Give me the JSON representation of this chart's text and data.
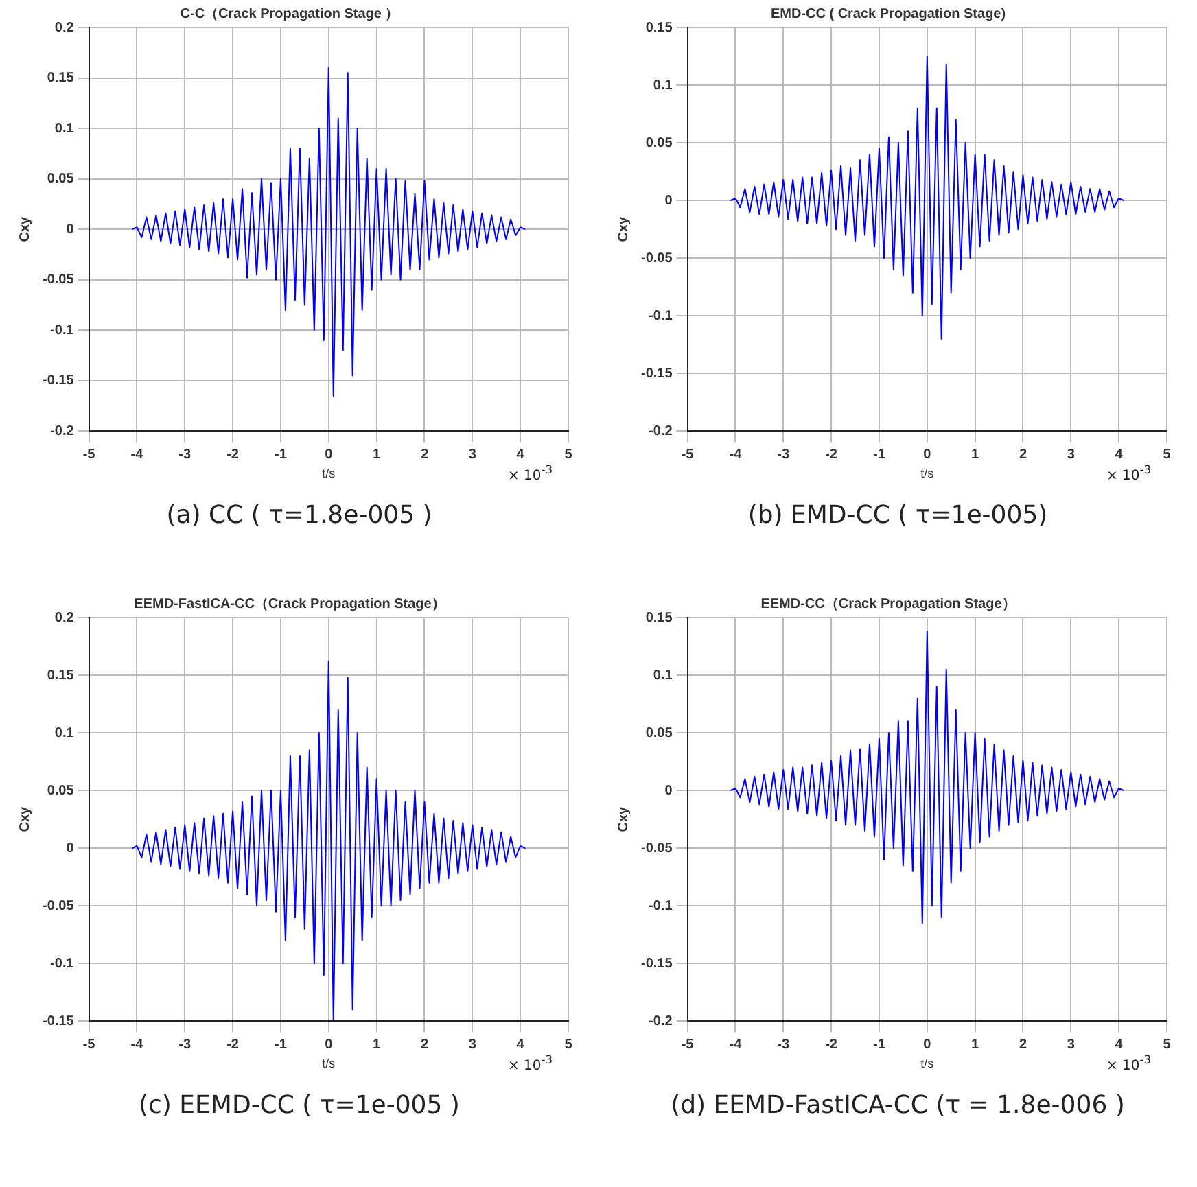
{
  "chart_data": [
    {
      "type": "line",
      "title": "C-C（Crack Propagation Stage ）",
      "xlabel": "t/s",
      "ylabel": "Cxy",
      "grid": true,
      "legend": false,
      "xlim": [
        -5,
        5
      ],
      "xticks": [
        -5,
        -4,
        -3,
        -2,
        -1,
        0,
        1,
        2,
        3,
        4,
        5
      ],
      "ylim": [
        -0.2,
        0.2
      ],
      "yticks": [
        -0.2,
        -0.15,
        -0.1,
        -0.05,
        0,
        0.05,
        0.1,
        0.15,
        0.2
      ],
      "annotations": [
        "× 10$^{-3}$",
        "(a) CC ( τ=1.8e-005 )"
      ],
      "x": [
        -4.1,
        -4.0,
        -3.9,
        -3.8,
        -3.7,
        -3.6,
        -3.5,
        -3.4,
        -3.3,
        -3.2,
        -3.1,
        -3.0,
        -2.9,
        -2.8,
        -2.7,
        -2.6,
        -2.5,
        -2.4,
        -2.3,
        -2.2,
        -2.1,
        -2.0,
        -1.9,
        -1.8,
        -1.7,
        -1.6,
        -1.5,
        -1.4,
        -1.3,
        -1.2,
        -1.1,
        -1.0,
        -0.9,
        -0.8,
        -0.7,
        -0.6,
        -0.5,
        -0.4,
        -0.3,
        -0.2,
        -0.1,
        0.0,
        0.1,
        0.2,
        0.3,
        0.4,
        0.5,
        0.6,
        0.7,
        0.8,
        0.9,
        1.0,
        1.1,
        1.2,
        1.3,
        1.4,
        1.5,
        1.6,
        1.7,
        1.8,
        1.9,
        2.0,
        2.1,
        2.2,
        2.3,
        2.4,
        2.5,
        2.6,
        2.7,
        2.8,
        2.9,
        3.0,
        3.1,
        3.2,
        3.3,
        3.4,
        3.5,
        3.6,
        3.7,
        3.8,
        3.9,
        4.0,
        4.1
      ],
      "series": [
        {
          "color": "#0000ff",
          "values": [
            0,
            0.002,
            -0.008,
            0.012,
            -0.01,
            0.014,
            -0.012,
            0.016,
            -0.014,
            0.018,
            -0.016,
            0.02,
            -0.018,
            0.022,
            -0.02,
            0.024,
            -0.022,
            0.026,
            -0.024,
            0.03,
            -0.028,
            0.03,
            -0.03,
            0.04,
            -0.048,
            0.036,
            -0.045,
            0.05,
            -0.04,
            0.046,
            -0.05,
            0.05,
            -0.08,
            0.08,
            -0.07,
            0.08,
            -0.075,
            0.07,
            -0.1,
            0.1,
            -0.11,
            0.16,
            -0.165,
            0.11,
            -0.12,
            0.155,
            -0.145,
            0.1,
            -0.08,
            0.07,
            -0.06,
            0.06,
            -0.05,
            0.06,
            -0.045,
            0.05,
            -0.05,
            0.048,
            -0.04,
            0.035,
            -0.04,
            0.048,
            -0.03,
            0.03,
            -0.028,
            0.026,
            -0.024,
            0.024,
            -0.022,
            0.02,
            -0.02,
            0.018,
            -0.018,
            0.016,
            -0.014,
            0.014,
            -0.012,
            0.012,
            -0.01,
            0.01,
            -0.006,
            0.002,
            0
          ]
        }
      ]
    },
    {
      "type": "line",
      "title": "EMD-CC ( Crack Propagation Stage)",
      "xlabel": "t/s",
      "ylabel": "Cxy",
      "grid": true,
      "legend": false,
      "xlim": [
        -5,
        5
      ],
      "xticks": [
        -5,
        -4,
        -3,
        -2,
        -1,
        0,
        1,
        2,
        3,
        4,
        5
      ],
      "ylim": [
        -0.2,
        0.15
      ],
      "yticks": [
        -0.2,
        -0.15,
        -0.1,
        -0.05,
        0,
        0.05,
        0.1,
        0.15
      ],
      "annotations": [
        "× 10$^{-3}$",
        "(b) EMD-CC ( τ=1e-005)"
      ],
      "x": [
        -4.1,
        -4.0,
        -3.9,
        -3.8,
        -3.7,
        -3.6,
        -3.5,
        -3.4,
        -3.3,
        -3.2,
        -3.1,
        -3.0,
        -2.9,
        -2.8,
        -2.7,
        -2.6,
        -2.5,
        -2.4,
        -2.3,
        -2.2,
        -2.1,
        -2.0,
        -1.9,
        -1.8,
        -1.7,
        -1.6,
        -1.5,
        -1.4,
        -1.3,
        -1.2,
        -1.1,
        -1.0,
        -0.9,
        -0.8,
        -0.7,
        -0.6,
        -0.5,
        -0.4,
        -0.3,
        -0.2,
        -0.1,
        0.0,
        0.1,
        0.2,
        0.3,
        0.4,
        0.5,
        0.6,
        0.7,
        0.8,
        0.9,
        1.0,
        1.1,
        1.2,
        1.3,
        1.4,
        1.5,
        1.6,
        1.7,
        1.8,
        1.9,
        2.0,
        2.1,
        2.2,
        2.3,
        2.4,
        2.5,
        2.6,
        2.7,
        2.8,
        2.9,
        3.0,
        3.1,
        3.2,
        3.3,
        3.4,
        3.5,
        3.6,
        3.7,
        3.8,
        3.9,
        4.0,
        4.1
      ],
      "series": [
        {
          "color": "#0000ff",
          "values": [
            0,
            0.002,
            -0.006,
            0.01,
            -0.01,
            0.012,
            -0.012,
            0.014,
            -0.012,
            0.016,
            -0.014,
            0.018,
            -0.016,
            0.018,
            -0.018,
            0.02,
            -0.02,
            0.02,
            -0.02,
            0.024,
            -0.022,
            0.026,
            -0.025,
            0.03,
            -0.03,
            0.028,
            -0.035,
            0.035,
            -0.03,
            0.04,
            -0.04,
            0.045,
            -0.05,
            0.055,
            -0.06,
            0.05,
            -0.065,
            0.06,
            -0.08,
            0.08,
            -0.1,
            0.125,
            -0.09,
            0.08,
            -0.12,
            0.118,
            -0.08,
            0.07,
            -0.06,
            0.05,
            -0.05,
            0.04,
            -0.04,
            0.04,
            -0.035,
            0.035,
            -0.03,
            0.03,
            -0.028,
            0.025,
            -0.025,
            0.022,
            -0.02,
            0.02,
            -0.018,
            0.018,
            -0.016,
            0.016,
            -0.014,
            0.014,
            -0.012,
            0.016,
            -0.012,
            0.012,
            -0.01,
            0.01,
            -0.01,
            0.01,
            -0.008,
            0.008,
            -0.006,
            0.002,
            0
          ]
        }
      ]
    },
    {
      "type": "line",
      "title": "EEMD-FastICA-CC（Crack Propagation Stage）",
      "xlabel": "t/s",
      "ylabel": "Cxy",
      "grid": true,
      "legend": false,
      "xlim": [
        -5,
        5
      ],
      "xticks": [
        -5,
        -4,
        -3,
        -2,
        -1,
        0,
        1,
        2,
        3,
        4,
        5
      ],
      "ylim": [
        -0.15,
        0.2
      ],
      "yticks": [
        -0.15,
        -0.1,
        -0.05,
        0,
        0.05,
        0.1,
        0.15,
        0.2
      ],
      "annotations": [
        "× 10$^{-3}$",
        "(c) EEMD-CC ( τ=1e-005 )"
      ],
      "x": [
        -4.1,
        -4.0,
        -3.9,
        -3.8,
        -3.7,
        -3.6,
        -3.5,
        -3.4,
        -3.3,
        -3.2,
        -3.1,
        -3.0,
        -2.9,
        -2.8,
        -2.7,
        -2.6,
        -2.5,
        -2.4,
        -2.3,
        -2.2,
        -2.1,
        -2.0,
        -1.9,
        -1.8,
        -1.7,
        -1.6,
        -1.5,
        -1.4,
        -1.3,
        -1.2,
        -1.1,
        -1.0,
        -0.9,
        -0.8,
        -0.7,
        -0.6,
        -0.5,
        -0.4,
        -0.3,
        -0.2,
        -0.1,
        0.0,
        0.1,
        0.2,
        0.3,
        0.4,
        0.5,
        0.6,
        0.7,
        0.8,
        0.9,
        1.0,
        1.1,
        1.2,
        1.3,
        1.4,
        1.5,
        1.6,
        1.7,
        1.8,
        1.9,
        2.0,
        2.1,
        2.2,
        2.3,
        2.4,
        2.5,
        2.6,
        2.7,
        2.8,
        2.9,
        3.0,
        3.1,
        3.2,
        3.3,
        3.4,
        3.5,
        3.6,
        3.7,
        3.8,
        3.9,
        4.0,
        4.1
      ],
      "series": [
        {
          "color": "#0000ff",
          "values": [
            0,
            0.002,
            -0.008,
            0.012,
            -0.012,
            0.014,
            -0.014,
            0.016,
            -0.016,
            0.018,
            -0.018,
            0.02,
            -0.02,
            0.022,
            -0.022,
            0.026,
            -0.024,
            0.028,
            -0.026,
            0.03,
            -0.03,
            0.032,
            -0.035,
            0.04,
            -0.04,
            0.045,
            -0.05,
            0.05,
            -0.045,
            0.05,
            -0.055,
            0.05,
            -0.08,
            0.08,
            -0.06,
            0.08,
            -0.07,
            0.085,
            -0.1,
            0.1,
            -0.11,
            0.162,
            -0.15,
            0.12,
            -0.1,
            0.148,
            -0.14,
            0.1,
            -0.08,
            0.07,
            -0.06,
            0.06,
            -0.05,
            0.05,
            -0.05,
            0.05,
            -0.045,
            0.04,
            -0.04,
            0.05,
            -0.035,
            0.04,
            -0.03,
            0.03,
            -0.03,
            0.026,
            -0.026,
            0.024,
            -0.022,
            0.022,
            -0.02,
            0.02,
            -0.018,
            0.018,
            -0.016,
            0.016,
            -0.014,
            0.014,
            -0.012,
            0.01,
            -0.008,
            0.002,
            0
          ]
        }
      ]
    },
    {
      "type": "line",
      "title": "EEMD-CC（Crack Propagation Stage）",
      "xlabel": "t/s",
      "ylabel": "Cxy",
      "grid": true,
      "legend": false,
      "xlim": [
        -5,
        5
      ],
      "xticks": [
        -5,
        -4,
        -3,
        -2,
        -1,
        0,
        1,
        2,
        3,
        4,
        5
      ],
      "ylim": [
        -0.2,
        0.15
      ],
      "yticks": [
        -0.2,
        -0.15,
        -0.1,
        -0.05,
        0,
        0.05,
        0.1,
        0.15
      ],
      "annotations": [
        "× 10$^{-3}$",
        "(d) EEMD-FastICA-CC (τ = 1.8e-006 )"
      ],
      "x": [
        -4.1,
        -4.0,
        -3.9,
        -3.8,
        -3.7,
        -3.6,
        -3.5,
        -3.4,
        -3.3,
        -3.2,
        -3.1,
        -3.0,
        -2.9,
        -2.8,
        -2.7,
        -2.6,
        -2.5,
        -2.4,
        -2.3,
        -2.2,
        -2.1,
        -2.0,
        -1.9,
        -1.8,
        -1.7,
        -1.6,
        -1.5,
        -1.4,
        -1.3,
        -1.2,
        -1.1,
        -1.0,
        -0.9,
        -0.8,
        -0.7,
        -0.6,
        -0.5,
        -0.4,
        -0.3,
        -0.2,
        -0.1,
        0.0,
        0.1,
        0.2,
        0.3,
        0.4,
        0.5,
        0.6,
        0.7,
        0.8,
        0.9,
        1.0,
        1.1,
        1.2,
        1.3,
        1.4,
        1.5,
        1.6,
        1.7,
        1.8,
        1.9,
        2.0,
        2.1,
        2.2,
        2.3,
        2.4,
        2.5,
        2.6,
        2.7,
        2.8,
        2.9,
        3.0,
        3.1,
        3.2,
        3.3,
        3.4,
        3.5,
        3.6,
        3.7,
        3.8,
        3.9,
        4.0,
        4.1
      ],
      "series": [
        {
          "color": "#0000ff",
          "values": [
            0,
            0.002,
            -0.006,
            0.01,
            -0.01,
            0.012,
            -0.012,
            0.014,
            -0.014,
            0.016,
            -0.016,
            0.018,
            -0.016,
            0.02,
            -0.018,
            0.02,
            -0.02,
            0.022,
            -0.022,
            0.024,
            -0.024,
            0.026,
            -0.026,
            0.03,
            -0.03,
            0.035,
            -0.03,
            0.036,
            -0.035,
            0.04,
            -0.04,
            0.045,
            -0.06,
            0.05,
            -0.05,
            0.06,
            -0.065,
            0.06,
            -0.07,
            0.08,
            -0.115,
            0.138,
            -0.1,
            0.09,
            -0.11,
            0.105,
            -0.08,
            0.07,
            -0.07,
            0.05,
            -0.05,
            0.05,
            -0.045,
            0.045,
            -0.04,
            0.04,
            -0.035,
            0.035,
            -0.03,
            0.03,
            -0.028,
            0.026,
            -0.026,
            0.024,
            -0.022,
            0.022,
            -0.02,
            0.02,
            -0.018,
            0.018,
            -0.016,
            0.016,
            -0.014,
            0.014,
            -0.012,
            0.012,
            -0.01,
            0.01,
            -0.008,
            0.008,
            -0.006,
            0.002,
            0
          ]
        }
      ]
    }
  ]
}
